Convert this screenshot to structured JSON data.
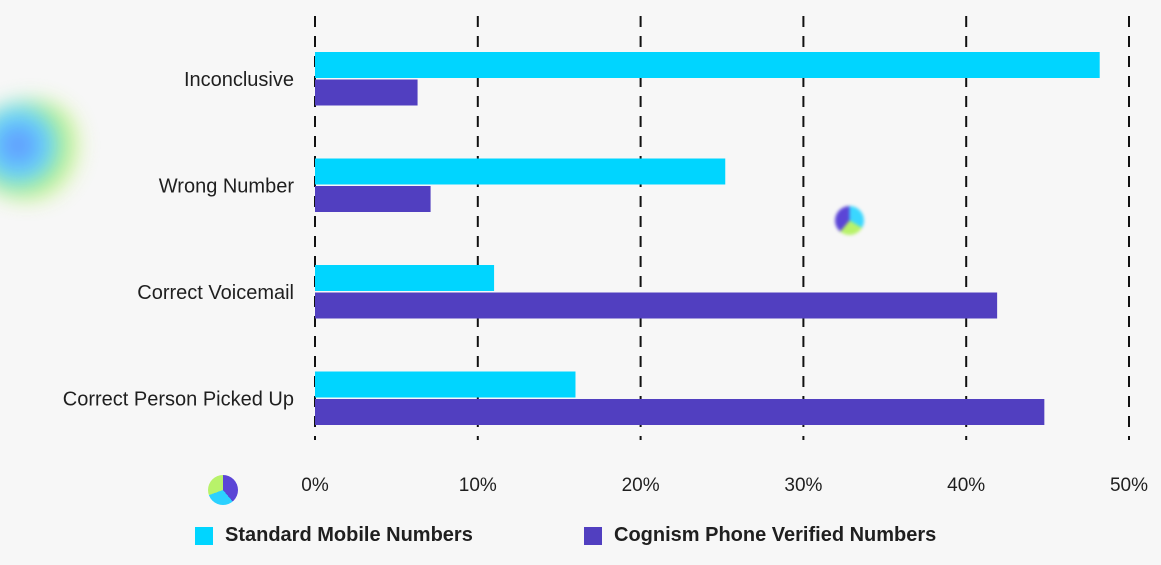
{
  "chart_data": {
    "type": "bar",
    "orientation": "horizontal",
    "categories": [
      "Inconclusive",
      "Wrong Number",
      "Correct Voicemail",
      "Correct Person Picked Up"
    ],
    "series": [
      {
        "name": "Standard Mobile Numbers",
        "color": "#00d5ff",
        "values": [
          48.2,
          25.2,
          11.0,
          16.0
        ]
      },
      {
        "name": "Cognism Phone Verified Numbers",
        "color": "#513fc0",
        "values": [
          6.3,
          7.1,
          41.9,
          44.8
        ]
      }
    ],
    "xlim": [
      0,
      50
    ],
    "xticks": [
      0,
      10,
      20,
      30,
      40,
      50
    ],
    "xtick_labels": [
      "0%",
      "10%",
      "20%",
      "30%",
      "40%",
      "50%"
    ],
    "grid": "vertical-dashed",
    "legend_position": "bottom-center"
  },
  "legend": {
    "items": [
      {
        "label": "Standard Mobile Numbers",
        "color": "#00d5ff"
      },
      {
        "label": "Cognism Phone Verified Numbers",
        "color": "#513fc0"
      }
    ]
  }
}
